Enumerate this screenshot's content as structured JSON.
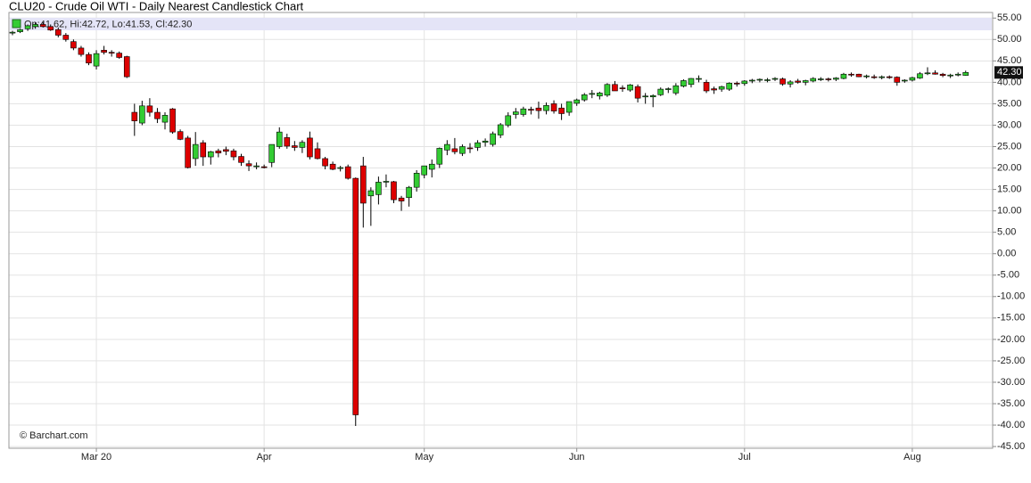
{
  "chart_data": {
    "type": "candlestick",
    "title": "CLU20 - Crude Oil WTI - Daily Nearest Candlestick Chart",
    "legend_text": "Op:41.62, Hi:42.72, Lo:41.53, Cl:42.30",
    "credit": "© Barchart.com",
    "up_color": "#33cc33",
    "down_color": "#dd0000",
    "grid": true,
    "last_price": {
      "value": 42.3,
      "label": "42.30"
    },
    "categories": [
      null,
      null,
      null,
      null,
      null,
      null,
      null,
      null,
      null,
      null,
      null,
      "Mar 20",
      null,
      null,
      null,
      null,
      null,
      null,
      null,
      null,
      null,
      null,
      null,
      null,
      null,
      null,
      null,
      null,
      null,
      null,
      null,
      null,
      null,
      "Apr",
      null,
      null,
      null,
      null,
      null,
      null,
      null,
      null,
      null,
      null,
      null,
      null,
      null,
      null,
      null,
      null,
      null,
      null,
      null,
      null,
      "May",
      null,
      null,
      null,
      null,
      null,
      null,
      null,
      null,
      null,
      null,
      null,
      null,
      null,
      null,
      null,
      null,
      null,
      null,
      null,
      "Jun",
      null,
      null,
      null,
      null,
      null,
      null,
      null,
      null,
      null,
      null,
      null,
      null,
      null,
      null,
      null,
      null,
      null,
      null,
      null,
      null,
      null,
      "Jul",
      null,
      null,
      null,
      null,
      null,
      null,
      null,
      null,
      null,
      null,
      null,
      null,
      null,
      null,
      null,
      null,
      null,
      null,
      null,
      null,
      null,
      "Aug",
      null,
      null,
      null,
      null,
      null,
      null,
      null
    ],
    "open": [
      51.5,
      51.8,
      52.5,
      53,
      53.5,
      53,
      52.3,
      51,
      49.5,
      48,
      46.5,
      43.8,
      47.5,
      47,
      46.8,
      46,
      33,
      30.5,
      34.5,
      33,
      30.7,
      33.8,
      28.5,
      27,
      22.2,
      25.9,
      22.6,
      24,
      24.3,
      24,
      22.7,
      21,
      20.3,
      20.3,
      21.3,
      25,
      27.1,
      25.2,
      24.8,
      27,
      24.5,
      22.2,
      20.9,
      20,
      20.3,
      17.6,
      20.5,
      13.5,
      13.8,
      16.9,
      16.8,
      13,
      13.1,
      15.5,
      18.4,
      19.7,
      20.9,
      24.2,
      24.5,
      23.4,
      24.7,
      24.8,
      26,
      25.5,
      27.7,
      30,
      32.5,
      32.5,
      33.7,
      34,
      33.4,
      35,
      34,
      33,
      35.1,
      35.9,
      37.2,
      36.8,
      37,
      39.5,
      38.7,
      38.2,
      39,
      36.6,
      36.6,
      37.1,
      38.5,
      37.5,
      39.1,
      39.5,
      40.8,
      40,
      38.5,
      38.4,
      38.4,
      39.8,
      39.7,
      40.3,
      40.5,
      40.5,
      40.8,
      40.8,
      39.6,
      40.3,
      40,
      40.3,
      40.7,
      40.8,
      40.7,
      40.9,
      41.9,
      41.9,
      41.4,
      41.3,
      41.1,
      41.3,
      41.2,
      40.3,
      40.5,
      41,
      42.2,
      42.2,
      41.9,
      41.5,
      41.7,
      41.62
    ],
    "high": [
      52,
      52.5,
      53.5,
      54,
      54,
      53.5,
      52.8,
      51.5,
      50,
      48.5,
      47,
      47.5,
      48.5,
      47.5,
      47.2,
      46.2,
      35,
      35.7,
      36.3,
      34,
      33,
      34,
      29,
      27.5,
      28.4,
      26.5,
      24,
      24.5,
      25,
      24.5,
      23.3,
      21.8,
      21.3,
      20.8,
      25.5,
      29.5,
      28,
      26.3,
      26.5,
      28.5,
      26,
      22.6,
      21.5,
      20.5,
      20.8,
      17.8,
      22.6,
      15.5,
      18,
      18.5,
      17,
      13.5,
      15.8,
      19.5,
      20.5,
      22,
      24.8,
      26.5,
      27,
      25.5,
      25.8,
      26.5,
      26.9,
      28.5,
      30.5,
      33,
      34,
      34.3,
      34.3,
      35.5,
      35.3,
      35.8,
      35,
      35.5,
      36.2,
      37.5,
      38.2,
      37.8,
      39.8,
      40.3,
      39.3,
      39.6,
      39.5,
      37.5,
      37.2,
      38.8,
      38.8,
      39.8,
      40.7,
      41,
      41.6,
      40.6,
      39,
      39.2,
      40,
      40.2,
      40.5,
      40.8,
      40.9,
      41,
      41.2,
      41.1,
      40.5,
      40.8,
      40.6,
      41.2,
      41.2,
      41.1,
      41.2,
      42.2,
      42.3,
      42,
      41.8,
      41.8,
      41.6,
      41.6,
      41.4,
      40.7,
      41.3,
      42.4,
      43.5,
      42.8,
      42.2,
      42,
      42.3,
      42.72
    ],
    "low": [
      51,
      51.5,
      52,
      52.5,
      52.8,
      52,
      50.5,
      49.5,
      47.5,
      46,
      44,
      43,
      46.5,
      46,
      45.5,
      41,
      27.5,
      30,
      32,
      30.5,
      29,
      28,
      26.5,
      19.9,
      20.5,
      20.5,
      20.8,
      22.5,
      23,
      21.8,
      20.5,
      19.3,
      19.7,
      19.9,
      20.2,
      24.5,
      24.5,
      24,
      23.5,
      22,
      22,
      19.7,
      19.5,
      19.2,
      17.3,
      -40.2,
      6.1,
      6.5,
      11.5,
      15.5,
      11.8,
      10,
      11,
      14.5,
      17.6,
      17.8,
      20,
      23,
      23.2,
      22.8,
      23.5,
      24,
      25,
      25,
      27,
      29.5,
      31.5,
      32,
      32.5,
      31.5,
      32.5,
      32.7,
      31.2,
      32.2,
      34.5,
      35.5,
      36.3,
      36,
      36.6,
      38,
      37.8,
      37.8,
      35.3,
      35,
      34.2,
      36.8,
      37.5,
      37,
      38.8,
      38.8,
      40,
      37.5,
      37.3,
      37.8,
      38,
      39,
      39.2,
      39.8,
      40,
      40,
      40.3,
      39.2,
      38.8,
      39.7,
      39.3,
      40,
      40.3,
      40.2,
      40.3,
      40.7,
      41.3,
      41.2,
      40.9,
      40.8,
      40.7,
      40.8,
      39.2,
      39.9,
      40.2,
      40.8,
      41.7,
      41.8,
      41.2,
      41,
      41.4,
      41.53
    ],
    "close": [
      51.7,
      52.3,
      53.2,
      53.5,
      53,
      52.2,
      51,
      50,
      48,
      46.5,
      44.5,
      46.7,
      47,
      46.8,
      45.8,
      41.3,
      31,
      34.5,
      33,
      31.5,
      32.3,
      28.4,
      26.7,
      20.1,
      25.5,
      22.6,
      23.8,
      23.5,
      23.9,
      22.6,
      21.3,
      20.5,
      20.5,
      20.2,
      25.5,
      28.4,
      25.1,
      24.8,
      26,
      22.6,
      22.2,
      20.5,
      19.7,
      20.1,
      17.6,
      -37.6,
      11.8,
      14.7,
      16.7,
      16.9,
      12.6,
      12.3,
      15.5,
      18.8,
      20.5,
      20.9,
      24.6,
      25.5,
      23.8,
      25,
      24.6,
      25.9,
      26.3,
      28,
      30.1,
      32.2,
      33.1,
      33.8,
      33.6,
      33.4,
      34.6,
      33.3,
      32.7,
      35.5,
      35.9,
      37.1,
      37.4,
      37.5,
      39.5,
      38,
      38.5,
      39.4,
      36.3,
      36.8,
      36.9,
      38.4,
      38.5,
      39.2,
      40.4,
      40.9,
      40.9,
      38,
      38.2,
      39,
      39.8,
      39.6,
      40.3,
      40.5,
      40.7,
      40.6,
      40.9,
      39.6,
      40.1,
      40,
      40.4,
      40.9,
      40.8,
      40.7,
      41,
      41.9,
      41.7,
      41.3,
      41.5,
      41.1,
      41.3,
      41.1,
      40,
      40.5,
      41.1,
      42,
      42.2,
      41.9,
      41.6,
      41.7,
      41.9,
      42.3
    ],
    "ylim": [
      -45.4,
      56.3
    ],
    "yticks": [
      {
        "value": 55,
        "label": "55.00"
      },
      {
        "value": 50,
        "label": "50.00"
      },
      {
        "value": 45,
        "label": "45.00"
      },
      {
        "value": 40,
        "label": "40.00"
      },
      {
        "value": 35,
        "label": "35.00"
      },
      {
        "value": 30,
        "label": "30.00"
      },
      {
        "value": 25,
        "label": "25.00"
      },
      {
        "value": 20,
        "label": "20.00"
      },
      {
        "value": 15,
        "label": "15.00"
      },
      {
        "value": 10,
        "label": "10.00"
      },
      {
        "value": 5,
        "label": "5.00"
      },
      {
        "value": 0,
        "label": "0.00"
      },
      {
        "value": -5,
        "label": "-5.00"
      },
      {
        "value": -10,
        "label": "-10.00"
      },
      {
        "value": -15,
        "label": "-15.00"
      },
      {
        "value": -20,
        "label": "-20.00"
      },
      {
        "value": -25,
        "label": "-25.00"
      },
      {
        "value": -30,
        "label": "-30.00"
      },
      {
        "value": -35,
        "label": "-35.00"
      },
      {
        "value": -40,
        "label": "-40.00"
      },
      {
        "value": -45,
        "label": "-45.00"
      }
    ]
  }
}
